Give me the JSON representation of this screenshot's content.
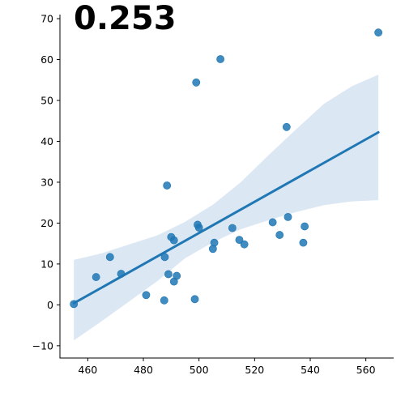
{
  "chart_data": {
    "type": "scatter",
    "title": "0.253",
    "xlabel": "",
    "ylabel": "",
    "xlim": [
      450,
      570
    ],
    "ylim": [
      -13,
      71
    ],
    "xticks": [
      460,
      480,
      500,
      520,
      540,
      560
    ],
    "yticks": [
      -10,
      0,
      10,
      20,
      30,
      40,
      50,
      60,
      70
    ],
    "grid": false,
    "colors": {
      "points": "#1f77b4",
      "line": "#1f77b4",
      "band": "#c9daee"
    },
    "points": [
      {
        "x": 455,
        "y": 0.2
      },
      {
        "x": 463,
        "y": 6.8
      },
      {
        "x": 468,
        "y": 11.7
      },
      {
        "x": 472,
        "y": 7.6
      },
      {
        "x": 481,
        "y": 2.4
      },
      {
        "x": 487.5,
        "y": 1.1
      },
      {
        "x": 487.7,
        "y": 11.7
      },
      {
        "x": 488.5,
        "y": 29.2
      },
      {
        "x": 489,
        "y": 7.5
      },
      {
        "x": 490,
        "y": 16.6
      },
      {
        "x": 491,
        "y": 15.8
      },
      {
        "x": 491,
        "y": 5.7
      },
      {
        "x": 492,
        "y": 7.1
      },
      {
        "x": 498.5,
        "y": 1.4
      },
      {
        "x": 499,
        "y": 54.4
      },
      {
        "x": 499.5,
        "y": 19.6
      },
      {
        "x": 500,
        "y": 18.9
      },
      {
        "x": 505,
        "y": 13.7
      },
      {
        "x": 505.5,
        "y": 15.2
      },
      {
        "x": 507.7,
        "y": 60.1
      },
      {
        "x": 512,
        "y": 18.8
      },
      {
        "x": 514.5,
        "y": 15.9
      },
      {
        "x": 516.3,
        "y": 14.8
      },
      {
        "x": 526.5,
        "y": 20.2
      },
      {
        "x": 529,
        "y": 17.1
      },
      {
        "x": 531.5,
        "y": 43.5
      },
      {
        "x": 532,
        "y": 21.5
      },
      {
        "x": 537.5,
        "y": 15.2
      },
      {
        "x": 538,
        "y": 19.2
      },
      {
        "x": 564.5,
        "y": 66.6
      }
    ],
    "regression": {
      "x": [
        455,
        564.5
      ],
      "y": [
        0.4,
        42.2
      ]
    },
    "confidence_band": {
      "x": [
        455,
        465,
        475,
        485,
        495,
        505,
        515,
        525,
        535,
        545,
        555,
        564.5
      ],
      "upper": [
        11.0,
        12.6,
        14.8,
        17.0,
        20.3,
        24.5,
        30.0,
        36.6,
        43.0,
        49.2,
        53.5,
        56.3
      ],
      "lower": [
        -8.7,
        -4.0,
        0.9,
        5.8,
        11.4,
        15.3,
        18.5,
        20.7,
        22.7,
        24.4,
        25.3,
        25.6
      ]
    }
  }
}
